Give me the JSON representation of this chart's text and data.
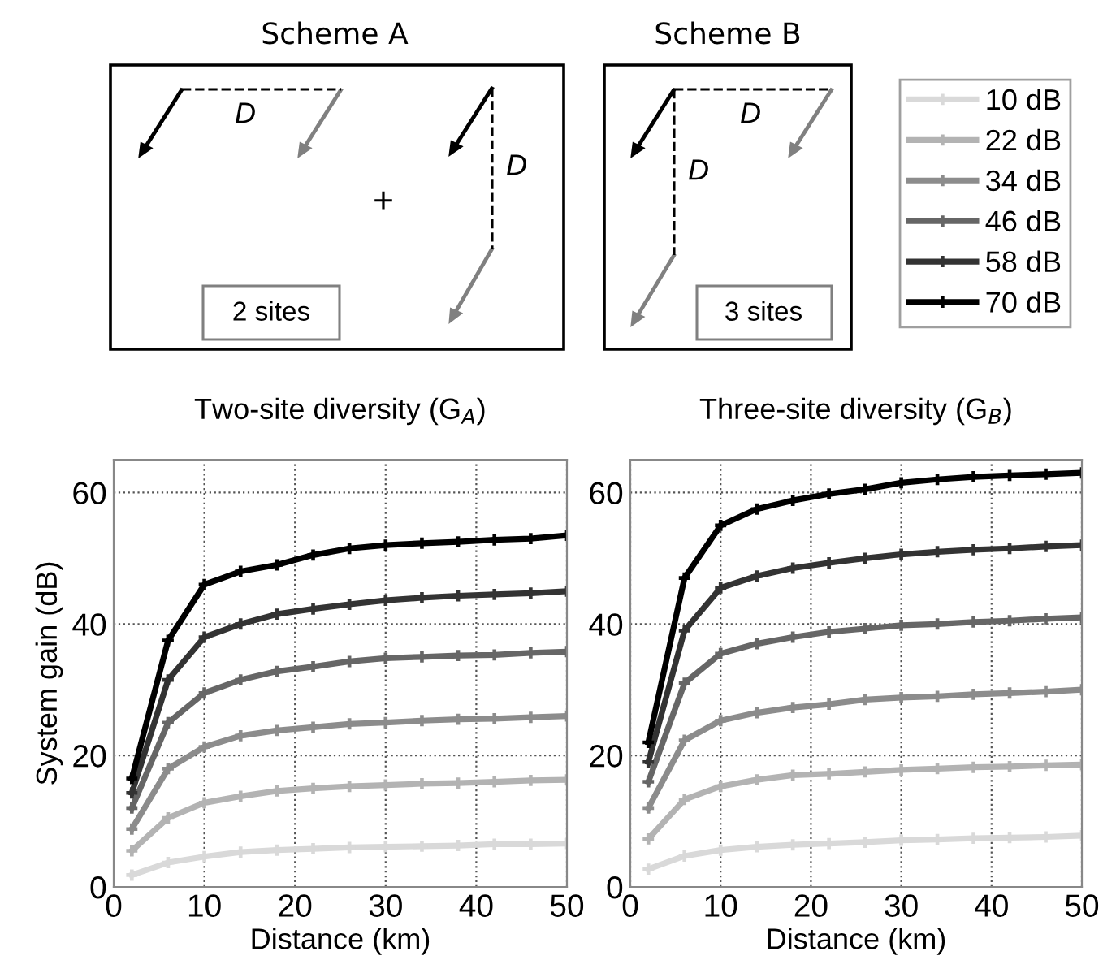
{
  "chart_data": [
    {
      "type": "line",
      "title": "Two-site diversity (G$_{A}$)",
      "xlabel": "Distance (km)",
      "ylabel": "System gain (dB)",
      "x": [
        2,
        6,
        10,
        14,
        18,
        22,
        26,
        30,
        34,
        38,
        42,
        46,
        50
      ],
      "xlim": [
        0,
        50
      ],
      "xticks": [
        0,
        10,
        20,
        30,
        40,
        50
      ],
      "ylim": [
        0,
        65
      ],
      "yticks": [
        0,
        20,
        40,
        60
      ],
      "grid": true,
      "marker": "cross",
      "line_style": "solid",
      "annotations": [
        "Scheme A",
        "D",
        "D",
        "+",
        "2 sites"
      ],
      "series": [
        {
          "color": "#d9d9d9",
          "values": [
            1.8,
            3.7,
            4.6,
            5.3,
            5.6,
            5.8,
            6.0,
            6.1,
            6.2,
            6.3,
            6.5,
            6.5,
            6.6
          ]
        },
        {
          "color": "#b3b3b3",
          "values": [
            5.5,
            10.5,
            12.8,
            13.8,
            14.6,
            15.0,
            15.3,
            15.5,
            15.7,
            15.8,
            16.0,
            16.2,
            16.3
          ]
        },
        {
          "color": "#8c8c8c",
          "values": [
            8.8,
            18.0,
            21.3,
            23.0,
            23.8,
            24.3,
            24.8,
            25.0,
            25.3,
            25.5,
            25.6,
            25.8,
            26.0
          ]
        },
        {
          "color": "#666666",
          "values": [
            12.0,
            25.0,
            29.5,
            31.5,
            32.8,
            33.5,
            34.3,
            34.8,
            35.0,
            35.2,
            35.3,
            35.6,
            35.8
          ]
        },
        {
          "color": "#333333",
          "values": [
            14.3,
            31.5,
            38.0,
            40.0,
            41.5,
            42.3,
            43.0,
            43.6,
            44.0,
            44.3,
            44.5,
            44.7,
            45.0
          ]
        },
        {
          "color": "#000000",
          "values": [
            16.5,
            37.5,
            46.0,
            48.0,
            49.0,
            50.5,
            51.5,
            52.0,
            52.3,
            52.5,
            52.8,
            53.0,
            53.5
          ]
        }
      ]
    },
    {
      "type": "line",
      "title": "Three-site diversity (G$_{B}$)",
      "xlabel": "Distance (km)",
      "x": [
        2,
        6,
        10,
        14,
        18,
        22,
        26,
        30,
        34,
        38,
        42,
        46,
        50
      ],
      "xlim": [
        0,
        50
      ],
      "xticks": [
        0,
        10,
        20,
        30,
        40,
        50
      ],
      "ylim": [
        0,
        65
      ],
      "yticks": [
        0,
        20,
        40,
        60
      ],
      "grid": true,
      "marker": "cross",
      "line_style": "solid",
      "legend": "top right",
      "annotations": [
        "Scheme B",
        "D",
        "D",
        "3 sites"
      ],
      "series": [
        {
          "name": "10 dB",
          "color": "#d9d9d9",
          "values": [
            2.7,
            4.7,
            5.6,
            6.1,
            6.4,
            6.6,
            6.8,
            7.1,
            7.2,
            7.4,
            7.5,
            7.6,
            7.8
          ]
        },
        {
          "name": "22 dB",
          "color": "#b3b3b3",
          "values": [
            7.3,
            13.3,
            15.3,
            16.3,
            17.0,
            17.2,
            17.5,
            17.8,
            18.0,
            18.2,
            18.3,
            18.5,
            18.6
          ]
        },
        {
          "name": "34 dB",
          "color": "#8c8c8c",
          "values": [
            12.0,
            22.3,
            25.3,
            26.5,
            27.3,
            27.8,
            28.5,
            28.8,
            29.0,
            29.3,
            29.5,
            29.7,
            30.0
          ]
        },
        {
          "name": "46 dB",
          "color": "#666666",
          "values": [
            16.0,
            31.0,
            35.5,
            37.0,
            38.0,
            38.8,
            39.3,
            39.8,
            40.0,
            40.3,
            40.5,
            40.8,
            41.0
          ]
        },
        {
          "name": "58 dB",
          "color": "#333333",
          "values": [
            19.0,
            39.0,
            45.5,
            47.3,
            48.5,
            49.3,
            50.0,
            50.6,
            51.0,
            51.3,
            51.5,
            51.8,
            52.0
          ]
        },
        {
          "name": "70 dB",
          "color": "#000000",
          "values": [
            22.0,
            47.0,
            55.0,
            57.5,
            58.8,
            59.8,
            60.5,
            61.5,
            62.0,
            62.4,
            62.6,
            62.8,
            63.0
          ]
        }
      ]
    }
  ]
}
